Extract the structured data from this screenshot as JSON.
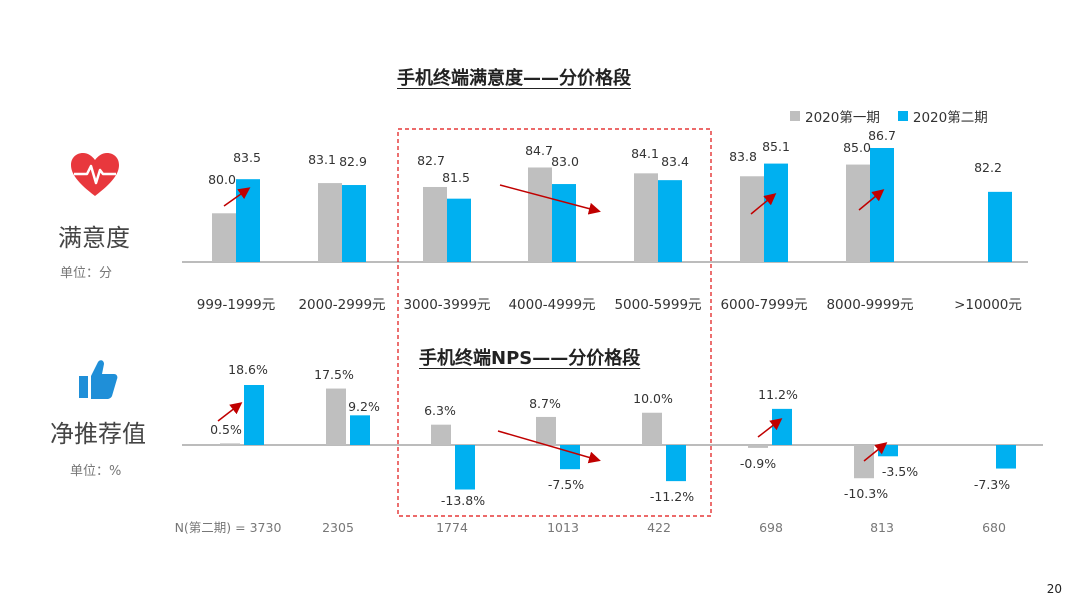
{
  "page_number": "20",
  "colors": {
    "series1": "#bfbfbf",
    "series2": "#00b0f0",
    "arrow": "#c00000",
    "highlight_box": "#e01010",
    "heart": "#e8383d",
    "thumb": "#1f8fd8"
  },
  "left_labels": {
    "satisfaction_label": "满意度",
    "satisfaction_unit": "单位：分",
    "nps_label": "净推荐值",
    "nps_unit": "单位：%"
  },
  "icons": {
    "satisfaction": "heart-pulse-icon",
    "nps": "thumbs-up-icon"
  },
  "chart_data": [
    {
      "type": "bar",
      "title": "手机终端满意度——分价格段",
      "categories": [
        "999-1999元",
        "2000-2999元",
        "3000-3999元",
        "4000-4999元",
        "5000-5999元",
        "6000-7999元",
        "8000-9999元",
        ">10000元"
      ],
      "series": [
        {
          "name": "2020第一期",
          "values": [
            80.0,
            83.1,
            82.7,
            84.7,
            84.1,
            83.8,
            85.0,
            null
          ],
          "labels": [
            "80.0",
            "83.1",
            "82.7",
            "84.7",
            "84.1",
            "83.8",
            "85.0",
            ""
          ]
        },
        {
          "name": "2020第二期",
          "values": [
            83.5,
            82.9,
            81.5,
            83.0,
            83.4,
            85.1,
            86.7,
            82.2
          ],
          "labels": [
            "83.5",
            "82.9",
            "81.5",
            "83.0",
            "83.4",
            "85.1",
            "86.7",
            "82.2"
          ]
        }
      ],
      "ylim": [
        75,
        88
      ],
      "legend": "top-right",
      "annotations": {
        "up_arrows": [
          0,
          5,
          6
        ],
        "down_arrow_range": [
          3,
          4
        ]
      }
    },
    {
      "type": "bar",
      "title": "手机终端NPS——分价格段",
      "categories": [
        "999-1999元",
        "2000-2999元",
        "3000-3999元",
        "4000-4999元",
        "5000-5999元",
        "6000-7999元",
        "8000-9999元",
        ">10000元"
      ],
      "series": [
        {
          "name": "2020第一期",
          "values": [
            0.5,
            17.5,
            6.3,
            8.7,
            10.0,
            -0.9,
            -10.3,
            null
          ],
          "labels": [
            "0.5%",
            "17.5%",
            "6.3%",
            "8.7%",
            "10.0%",
            "-0.9%",
            "-10.3%",
            ""
          ]
        },
        {
          "name": "2020第二期",
          "values": [
            18.6,
            9.2,
            -13.8,
            -7.5,
            -11.2,
            11.2,
            -3.5,
            -7.3
          ],
          "labels": [
            "18.6%",
            "9.2%",
            "-13.8%",
            "-7.5%",
            "-11.2%",
            "11.2%",
            "-3.5%",
            "-7.3%"
          ]
        }
      ],
      "sample_sizes": [
        "N(第二期) = 3730",
        "2305",
        "1774",
        "1013",
        "422",
        "698",
        "813",
        "680"
      ],
      "ylim": [
        -20,
        20
      ],
      "annotations": {
        "up_arrows": [
          0,
          5,
          6
        ],
        "down_arrow_range": [
          3,
          4
        ]
      }
    }
  ]
}
